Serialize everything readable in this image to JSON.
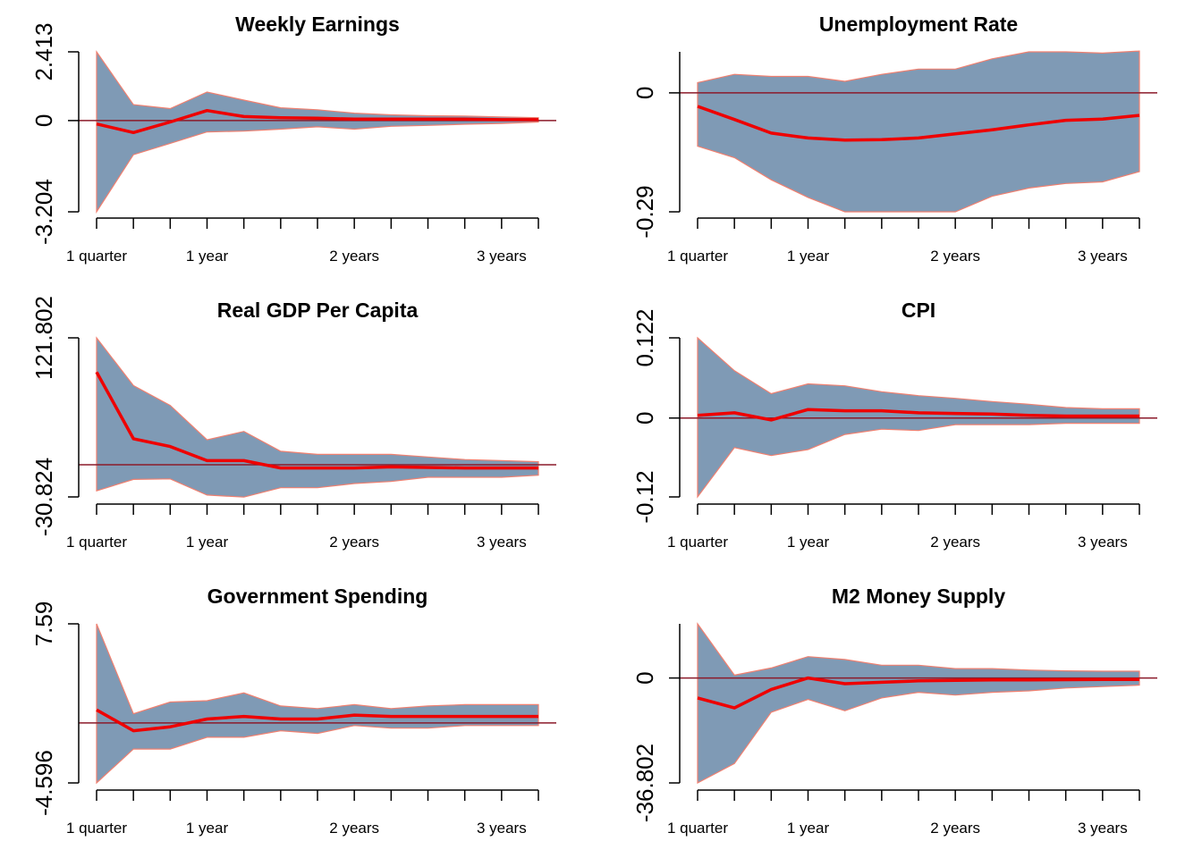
{
  "colors": {
    "band": "#7f9ab5",
    "band_edge": "#f08070",
    "irf": "#ee0000",
    "zero": "#8b1a2a",
    "axis": "#000000"
  },
  "x_tick_labels": [
    "1 quarter",
    "1 year",
    "2 years",
    "3 years"
  ],
  "chart_data": [
    {
      "type": "area",
      "title": "Weekly Earnings",
      "x": [
        1,
        2,
        3,
        4,
        5,
        6,
        7,
        8,
        9,
        10,
        11,
        12,
        13
      ],
      "x_tick_positions": [
        1,
        2,
        3,
        4,
        5,
        6,
        7,
        8,
        9,
        10,
        11,
        12,
        13
      ],
      "x_tick_labels": {
        "1": "1 quarter",
        "4": "1 year",
        "8": "2 years",
        "12": "3 years"
      },
      "ylim": [
        -3.204,
        2.413
      ],
      "y_ticks": [
        {
          "value": -3.204,
          "label": "-3.204"
        },
        {
          "value": 0,
          "label": "0"
        },
        {
          "value": 2.413,
          "label": "2.413"
        }
      ],
      "upper": [
        2.413,
        0.56,
        0.42,
        1.0,
        0.72,
        0.45,
        0.38,
        0.26,
        0.2,
        0.17,
        0.16,
        0.13,
        0.1
      ],
      "response": [
        -0.12,
        -0.42,
        -0.05,
        0.35,
        0.14,
        0.1,
        0.08,
        0.05,
        0.05,
        0.05,
        0.05,
        0.03,
        0.03
      ],
      "lower": [
        -3.204,
        -1.2,
        -0.8,
        -0.4,
        -0.37,
        -0.3,
        -0.22,
        -0.3,
        -0.2,
        -0.17,
        -0.13,
        -0.1,
        -0.05
      ]
    },
    {
      "type": "area",
      "title": "Unemployment Rate",
      "x": [
        1,
        2,
        3,
        4,
        5,
        6,
        7,
        8,
        9,
        10,
        11,
        12,
        13
      ],
      "x_tick_positions": [
        1,
        2,
        3,
        4,
        5,
        6,
        7,
        8,
        9,
        10,
        11,
        12,
        13
      ],
      "x_tick_labels": {
        "1": "1 quarter",
        "4": "1 year",
        "8": "2 years",
        "12": "3 years"
      },
      "ylim": [
        -0.29,
        0.1
      ],
      "y_ticks": [
        {
          "value": -0.29,
          "label": "-0.29"
        },
        {
          "value": 0,
          "label": "0"
        }
      ],
      "upper": [
        0.025,
        0.045,
        0.04,
        0.04,
        0.028,
        0.045,
        0.058,
        0.058,
        0.083,
        0.1,
        0.1,
        0.097,
        0.102
      ],
      "response": [
        -0.033,
        -0.065,
        -0.098,
        -0.11,
        -0.115,
        -0.114,
        -0.11,
        -0.1,
        -0.09,
        -0.078,
        -0.067,
        -0.064,
        -0.055
      ],
      "lower": [
        -0.13,
        -0.158,
        -0.212,
        -0.255,
        -0.29,
        -0.29,
        -0.29,
        -0.29,
        -0.252,
        -0.232,
        -0.221,
        -0.217,
        -0.192
      ]
    },
    {
      "type": "area",
      "title": "Real GDP Per Capita",
      "x": [
        1,
        2,
        3,
        4,
        5,
        6,
        7,
        8,
        9,
        10,
        11,
        12,
        13
      ],
      "x_tick_positions": [
        1,
        2,
        3,
        4,
        5,
        6,
        7,
        8,
        9,
        10,
        11,
        12,
        13
      ],
      "x_tick_labels": {
        "1": "1 quarter",
        "4": "1 year",
        "8": "2 years",
        "12": "3 years"
      },
      "ylim": [
        -30.824,
        121.802
      ],
      "y_ticks": [
        {
          "value": -30.824,
          "label": "-30.824"
        },
        {
          "value": 121.802,
          "label": "121.802"
        }
      ],
      "upper": [
        121.802,
        76,
        57,
        24,
        32,
        13,
        10,
        10,
        10,
        7.5,
        5,
        4,
        3
      ],
      "response": [
        89,
        25,
        17.5,
        4,
        4,
        -3,
        -3,
        -3,
        -2,
        -2.5,
        -3,
        -3,
        -3
      ],
      "lower": [
        -25,
        -14,
        -13.5,
        -29,
        -31,
        -22,
        -22,
        -18,
        -16,
        -12,
        -12,
        -12,
        -10
      ]
    },
    {
      "type": "area",
      "title": "CPI",
      "x": [
        1,
        2,
        3,
        4,
        5,
        6,
        7,
        8,
        9,
        10,
        11,
        12,
        13
      ],
      "x_tick_positions": [
        1,
        2,
        3,
        4,
        5,
        6,
        7,
        8,
        9,
        10,
        11,
        12,
        13
      ],
      "x_tick_labels": {
        "1": "1 quarter",
        "4": "1 year",
        "8": "2 years",
        "12": "3 years"
      },
      "ylim": [
        -0.12,
        0.122
      ],
      "y_ticks": [
        {
          "value": -0.12,
          "label": "-0.12"
        },
        {
          "value": 0,
          "label": "0"
        },
        {
          "value": 0.122,
          "label": "0.122"
        }
      ],
      "upper": [
        0.122,
        0.072,
        0.037,
        0.052,
        0.049,
        0.04,
        0.034,
        0.03,
        0.025,
        0.021,
        0.016,
        0.014,
        0.014
      ],
      "response": [
        0.004,
        0.008,
        -0.003,
        0.013,
        0.011,
        0.011,
        0.008,
        0.007,
        0.006,
        0.004,
        0.003,
        0.003,
        0.003
      ],
      "lower": [
        -0.12,
        -0.045,
        -0.057,
        -0.048,
        -0.025,
        -0.017,
        -0.019,
        -0.01,
        -0.01,
        -0.01,
        -0.008,
        -0.008,
        -0.008
      ]
    },
    {
      "type": "area",
      "title": "Government Spending",
      "x": [
        1,
        2,
        3,
        4,
        5,
        6,
        7,
        8,
        9,
        10,
        11,
        12,
        13
      ],
      "x_tick_positions": [
        1,
        2,
        3,
        4,
        5,
        6,
        7,
        8,
        9,
        10,
        11,
        12,
        13
      ],
      "x_tick_labels": {
        "1": "1 quarter",
        "4": "1 year",
        "8": "2 years",
        "12": "3 years"
      },
      "ylim": [
        -4.596,
        7.59
      ],
      "y_ticks": [
        {
          "value": -4.596,
          "label": "-4.596"
        },
        {
          "value": 7.59,
          "label": "7.59"
        }
      ],
      "upper": [
        7.59,
        0.7,
        1.6,
        1.7,
        2.3,
        1.3,
        1.1,
        1.4,
        1.1,
        1.3,
        1.4,
        1.4,
        1.4
      ],
      "response": [
        1.0,
        -0.6,
        -0.3,
        0.3,
        0.5,
        0.3,
        0.3,
        0.6,
        0.5,
        0.5,
        0.5,
        0.5,
        0.5
      ],
      "lower": [
        -4.596,
        -2.0,
        -2.0,
        -1.1,
        -1.1,
        -0.6,
        -0.8,
        -0.2,
        -0.4,
        -0.4,
        -0.2,
        -0.2,
        -0.2
      ]
    },
    {
      "type": "area",
      "title": "M2 Money Supply",
      "x": [
        1,
        2,
        3,
        4,
        5,
        6,
        7,
        8,
        9,
        10,
        11,
        12,
        13
      ],
      "x_tick_positions": [
        1,
        2,
        3,
        4,
        5,
        6,
        7,
        8,
        9,
        10,
        11,
        12,
        13
      ],
      "x_tick_labels": {
        "1": "1 quarter",
        "4": "1 year",
        "8": "2 years",
        "12": "3 years"
      },
      "ylim": [
        -36.802,
        19
      ],
      "y_ticks": [
        {
          "value": -36.802,
          "label": "-36.802"
        },
        {
          "value": 0,
          "label": "0"
        }
      ],
      "upper": [
        19,
        1,
        3.5,
        7.5,
        6.5,
        4.5,
        4.5,
        3.3,
        3.3,
        2.8,
        2.5,
        2.4,
        2.4
      ],
      "response": [
        -7,
        -10.5,
        -4,
        0,
        -2,
        -1.5,
        -1,
        -0.8,
        -0.7,
        -0.7,
        -0.6,
        -0.5,
        -0.5
      ],
      "lower": [
        -36.802,
        -30,
        -12,
        -7.5,
        -11.5,
        -7,
        -5,
        -6,
        -5,
        -4.5,
        -3.5,
        -3,
        -2.5
      ]
    }
  ]
}
